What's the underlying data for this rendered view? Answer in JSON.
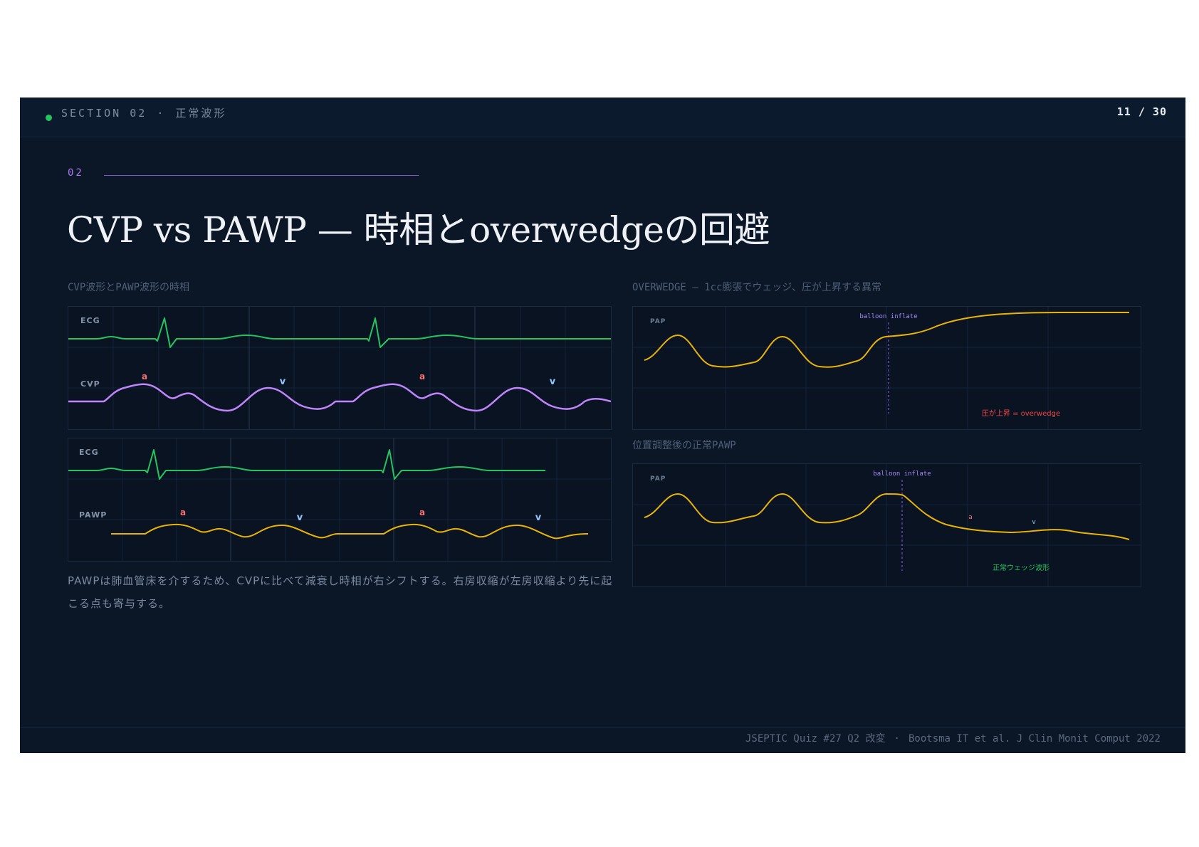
{
  "header": {
    "section_label": "SECTION 02",
    "separator": "·",
    "section_topic": "正常波形",
    "page_indicator": "11 / 30"
  },
  "slide": {
    "number": "02",
    "title": "CVP vs PAWP — 時相とoverwedgeの回避"
  },
  "left": {
    "caption": "CVP波形とPAWP波形の時相",
    "panel1": {
      "track1_label": "ECG",
      "track2_label": "CVP",
      "a_label": "a",
      "v_label": "v"
    },
    "panel2": {
      "track1_label": "ECG",
      "track2_label": "PAWP",
      "a_label": "a",
      "v_label": "v"
    },
    "body": "PAWPは肺血管床を介するため、CVPに比べて減衰し時相が右シフトする。右房収縮が左房収縮より先に起こる点も寄与する。"
  },
  "right": {
    "caption1": "OVERWEDGE — 1cc膨張でウェッジ、圧が上昇する異常",
    "panel1": {
      "track_label": "PAP",
      "marker_label": "balloon inflate",
      "annotation": "圧が上昇 = overwedge"
    },
    "caption2": "位置調整後の正常PAWP",
    "panel2": {
      "track_label": "PAP",
      "marker_label": "balloon inflate",
      "annotation": "正常ウェッジ波形",
      "a_label": "a",
      "v_label": "v"
    }
  },
  "footer": {
    "source": "JSEPTIC Quiz #27 Q2 改変",
    "separator": "·",
    "citation": "Bootsma IT et al. J Clin Monit Comput 2022"
  },
  "colors": {
    "background": "#0b1626",
    "ecg": "#22c55e",
    "cvp": "#c084fc",
    "pawp": "#eab308",
    "a_wave": "#f87171",
    "v_wave": "#93c5fd",
    "overwedge": "#ef4444",
    "accent": "#a77bf0"
  }
}
